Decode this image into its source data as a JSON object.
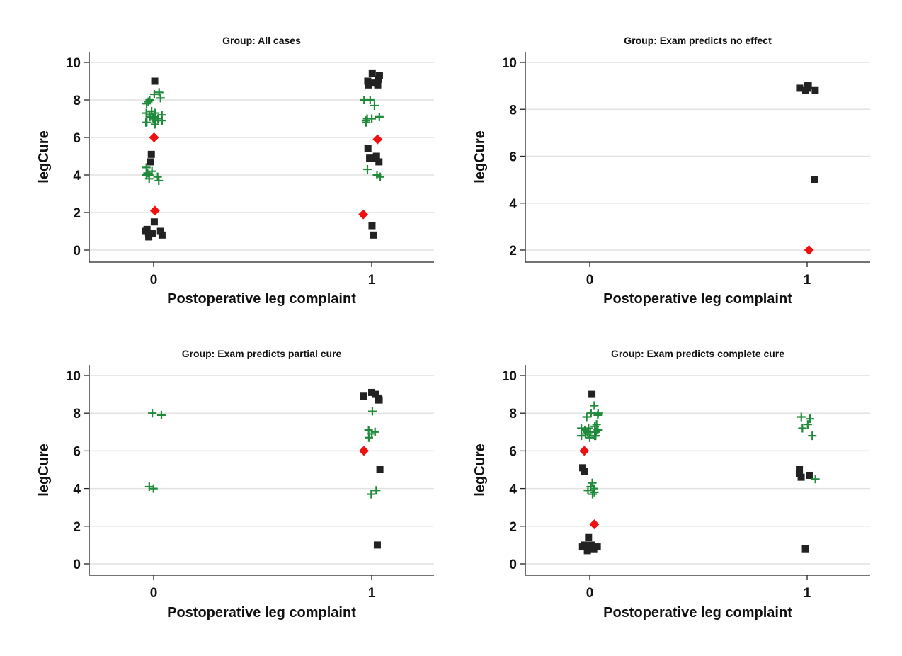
{
  "chart_data": [
    {
      "type": "scatter",
      "title": "Group: All cases",
      "xlabel": "Postoperative leg complaint",
      "ylabel": "legCure",
      "xticks": [
        "0",
        "1"
      ],
      "yticks": [
        "0",
        "2",
        "4",
        "6",
        "8",
        "10"
      ],
      "ylim": [
        0,
        10
      ],
      "series": [
        {
          "marker": "square",
          "color": "#222222",
          "points": [
            [
              0,
              9.0
            ],
            [
              0,
              5.1
            ],
            [
              0,
              4.7
            ],
            [
              0,
              1.5
            ],
            [
              0,
              1.1
            ],
            [
              0,
              1.0
            ],
            [
              0,
              1.0
            ],
            [
              0,
              0.9
            ],
            [
              0,
              0.9
            ],
            [
              0,
              0.8
            ],
            [
              0,
              0.7
            ],
            [
              1,
              9.4
            ],
            [
              1,
              9.3
            ],
            [
              1,
              9.1
            ],
            [
              1,
              9.0
            ],
            [
              1,
              8.9
            ],
            [
              1,
              8.9
            ],
            [
              1,
              8.8
            ],
            [
              1,
              8.8
            ],
            [
              1,
              5.4
            ],
            [
              1,
              5.0
            ],
            [
              1,
              4.9
            ],
            [
              1,
              4.9
            ],
            [
              1,
              4.7
            ],
            [
              1,
              1.3
            ],
            [
              1,
              0.8
            ]
          ]
        },
        {
          "marker": "plus",
          "color": "#1f8a3a",
          "points": [
            [
              0,
              8.4
            ],
            [
              0,
              8.3
            ],
            [
              0,
              8.1
            ],
            [
              0,
              8.0
            ],
            [
              0,
              7.9
            ],
            [
              0,
              7.8
            ],
            [
              0,
              7.4
            ],
            [
              0,
              7.3
            ],
            [
              0,
              7.3
            ],
            [
              0,
              7.2
            ],
            [
              0,
              7.2
            ],
            [
              0,
              7.1
            ],
            [
              0,
              7.1
            ],
            [
              0,
              7.0
            ],
            [
              0,
              7.0
            ],
            [
              0,
              7.0
            ],
            [
              0,
              6.9
            ],
            [
              0,
              6.9
            ],
            [
              0,
              6.8
            ],
            [
              0,
              6.8
            ],
            [
              0,
              6.7
            ],
            [
              0,
              4.4
            ],
            [
              0,
              4.2
            ],
            [
              0,
              4.1
            ],
            [
              0,
              4.0
            ],
            [
              0,
              4.0
            ],
            [
              0,
              3.9
            ],
            [
              0,
              3.8
            ],
            [
              0,
              3.7
            ],
            [
              1,
              8.0
            ],
            [
              1,
              8.0
            ],
            [
              1,
              7.7
            ],
            [
              1,
              7.1
            ],
            [
              1,
              7.0
            ],
            [
              1,
              7.0
            ],
            [
              1,
              6.9
            ],
            [
              1,
              6.8
            ],
            [
              1,
              4.3
            ],
            [
              1,
              4.0
            ],
            [
              1,
              3.9
            ]
          ]
        },
        {
          "marker": "diamond",
          "color": "#ee1111",
          "points": [
            [
              0,
              6.0
            ],
            [
              0,
              2.1
            ],
            [
              1,
              5.9
            ],
            [
              1,
              1.9
            ]
          ]
        }
      ]
    },
    {
      "type": "scatter",
      "title": "Group: Exam predicts no effect",
      "xlabel": "Postoperative leg complaint",
      "ylabel": "legCure",
      "xticks": [
        "0",
        "1"
      ],
      "yticks": [
        "2",
        "4",
        "6",
        "8",
        "10"
      ],
      "ylim": [
        2,
        10
      ],
      "series": [
        {
          "marker": "square",
          "color": "#222222",
          "points": [
            [
              1,
              9.0
            ],
            [
              1,
              9.0
            ],
            [
              1,
              8.9
            ],
            [
              1,
              8.9
            ],
            [
              1,
              8.8
            ],
            [
              1,
              8.8
            ],
            [
              1,
              5.0
            ]
          ]
        },
        {
          "marker": "diamond",
          "color": "#ee1111",
          "points": [
            [
              1,
              2.0
            ]
          ]
        }
      ]
    },
    {
      "type": "scatter",
      "title": "Group: Exam predicts partial cure",
      "xlabel": "Postoperative leg complaint",
      "ylabel": "legCure",
      "xticks": [
        "0",
        "1"
      ],
      "yticks": [
        "0",
        "2",
        "4",
        "6",
        "8",
        "10"
      ],
      "ylim": [
        0,
        10
      ],
      "series": [
        {
          "marker": "plus",
          "color": "#1f8a3a",
          "points": [
            [
              0,
              8.0
            ],
            [
              0,
              7.9
            ],
            [
              0,
              4.0
            ],
            [
              0,
              4.1
            ],
            [
              1,
              8.1
            ],
            [
              1,
              7.1
            ],
            [
              1,
              7.0
            ],
            [
              1,
              6.9
            ],
            [
              1,
              6.7
            ],
            [
              1,
              3.9
            ],
            [
              1,
              3.7
            ]
          ]
        },
        {
          "marker": "square",
          "color": "#222222",
          "points": [
            [
              1,
              9.0
            ],
            [
              1,
              9.1
            ],
            [
              1,
              8.9
            ],
            [
              1,
              8.8
            ],
            [
              1,
              8.7
            ],
            [
              1,
              8.7
            ],
            [
              1,
              5.0
            ],
            [
              1,
              1.0
            ]
          ]
        },
        {
          "marker": "diamond",
          "color": "#ee1111",
          "points": [
            [
              1,
              6.0
            ]
          ]
        }
      ]
    },
    {
      "type": "scatter",
      "title": "Group: Exam predicts complete cure",
      "xlabel": "Postoperative leg complaint",
      "ylabel": "legCure",
      "xticks": [
        "0",
        "1"
      ],
      "yticks": [
        "0",
        "2",
        "4",
        "6",
        "8",
        "10"
      ],
      "ylim": [
        0,
        10
      ],
      "series": [
        {
          "marker": "square",
          "color": "#222222",
          "points": [
            [
              0,
              9.0
            ],
            [
              0,
              5.1
            ],
            [
              0,
              4.9
            ],
            [
              0,
              1.4
            ],
            [
              0,
              1.0
            ],
            [
              0,
              1.0
            ],
            [
              0,
              0.9
            ],
            [
              0,
              0.9
            ],
            [
              0,
              0.8
            ],
            [
              0,
              0.7
            ],
            [
              1,
              5.0
            ],
            [
              1,
              4.8
            ],
            [
              1,
              4.7
            ],
            [
              1,
              4.6
            ],
            [
              1,
              0.8
            ]
          ]
        },
        {
          "marker": "plus",
          "color": "#1f8a3a",
          "points": [
            [
              0,
              8.4
            ],
            [
              0,
              8.0
            ],
            [
              0,
              8.0
            ],
            [
              0,
              7.9
            ],
            [
              0,
              7.8
            ],
            [
              0,
              7.4
            ],
            [
              0,
              7.3
            ],
            [
              0,
              7.2
            ],
            [
              0,
              7.2
            ],
            [
              0,
              7.1
            ],
            [
              0,
              7.1
            ],
            [
              0,
              7.0
            ],
            [
              0,
              7.0
            ],
            [
              0,
              7.0
            ],
            [
              0,
              6.9
            ],
            [
              0,
              6.9
            ],
            [
              0,
              6.8
            ],
            [
              0,
              6.8
            ],
            [
              0,
              6.8
            ],
            [
              0,
              6.7
            ],
            [
              0,
              4.3
            ],
            [
              0,
              4.1
            ],
            [
              0,
              4.0
            ],
            [
              0,
              3.9
            ],
            [
              0,
              3.8
            ],
            [
              0,
              3.7
            ],
            [
              1,
              7.8
            ],
            [
              1,
              7.7
            ],
            [
              1,
              7.4
            ],
            [
              1,
              7.2
            ],
            [
              1,
              6.8
            ],
            [
              1,
              4.5
            ]
          ]
        },
        {
          "marker": "diamond",
          "color": "#ee1111",
          "points": [
            [
              0,
              6.0
            ],
            [
              0,
              2.1
            ]
          ]
        }
      ]
    }
  ]
}
